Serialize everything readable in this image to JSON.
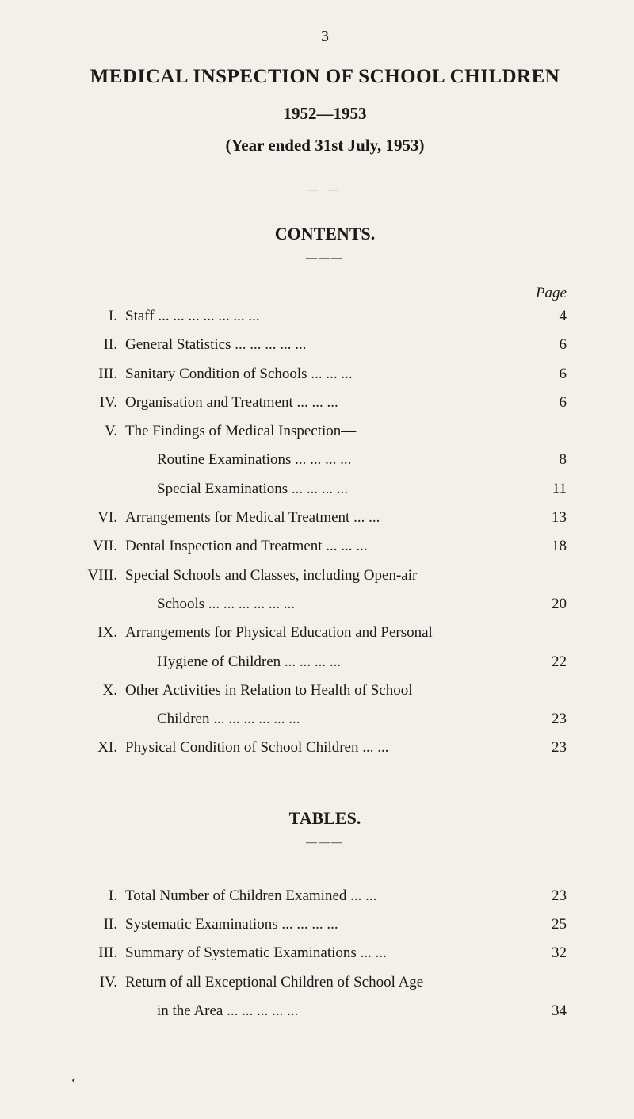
{
  "page_number_top": "3",
  "title": "MEDICAL INSPECTION OF SCHOOL CHILDREN",
  "year_range": "1952—1953",
  "subtitle": "(Year ended 31st July, 1953)",
  "contents_heading": "CONTENTS.",
  "tables_heading": "TABLES.",
  "page_label": "Page",
  "contents": [
    {
      "numeral": "I.",
      "desc": "Staff     ...     ...     ...     ...     ...     ...     ...",
      "page": "4"
    },
    {
      "numeral": "II.",
      "desc": "General Statistics     ...     ...     ...     ...     ...",
      "page": "6"
    },
    {
      "numeral": "III.",
      "desc": "Sanitary Condition of Schools     ...     ...     ...",
      "page": "6"
    },
    {
      "numeral": "IV.",
      "desc": "Organisation and Treatment     ...     ...     ...",
      "page": "6"
    },
    {
      "numeral": "V.",
      "desc": "The Findings of Medical Inspection—",
      "page": ""
    },
    {
      "numeral": "",
      "desc": "Routine Examinations ...     ...     ...     ...",
      "page": "8",
      "sub": true
    },
    {
      "numeral": "",
      "desc": "Special Examinations ...     ...     ...     ...",
      "page": "11",
      "sub": true
    },
    {
      "numeral": "VI.",
      "desc": "Arrangements for Medical Treatment     ...     ...",
      "page": "13"
    },
    {
      "numeral": "VII.",
      "desc": "Dental Inspection and Treatment ...     ...     ...",
      "page": "18"
    },
    {
      "numeral": "VIII.",
      "desc": "Special Schools and Classes, including Open-air",
      "page": ""
    },
    {
      "numeral": "",
      "desc": "Schools     ...     ...     ...     ...     ...     ...",
      "page": "20",
      "sub": true
    },
    {
      "numeral": "IX.",
      "desc": "Arrangements for Physical Education and Personal",
      "page": ""
    },
    {
      "numeral": "",
      "desc": "Hygiene of Children     ...     ...     ...     ...",
      "page": "22",
      "sub": true
    },
    {
      "numeral": "X.",
      "desc": "Other Activities in Relation to Health of School",
      "page": ""
    },
    {
      "numeral": "",
      "desc": "Children ...     ...     ...     ...     ...     ...",
      "page": "23",
      "sub": true
    },
    {
      "numeral": "XI.",
      "desc": "Physical Condition of School Children     ...     ...",
      "page": "23"
    }
  ],
  "tables": [
    {
      "numeral": "I.",
      "desc": "Total Number of Children Examined     ...     ...",
      "page": "23"
    },
    {
      "numeral": "II.",
      "desc": "Systematic Examinations     ...     ...     ...     ...",
      "page": "25"
    },
    {
      "numeral": "III.",
      "desc": "Summary of Systematic Examinations     ...     ...",
      "page": "32"
    },
    {
      "numeral": "IV.",
      "desc": "Return of all Exceptional Children of School Age",
      "page": ""
    },
    {
      "numeral": "",
      "desc": "in the Area ...       ...     ...     ...     ...",
      "page": "34",
      "sub": true
    }
  ],
  "footer_mark": "‹",
  "colors": {
    "background": "#f2f0e8",
    "text": "#1a1a1a"
  },
  "typography": {
    "title_fontsize": 25,
    "body_fontsize": 19,
    "weight_title": "bold",
    "font_family": "Times New Roman"
  }
}
